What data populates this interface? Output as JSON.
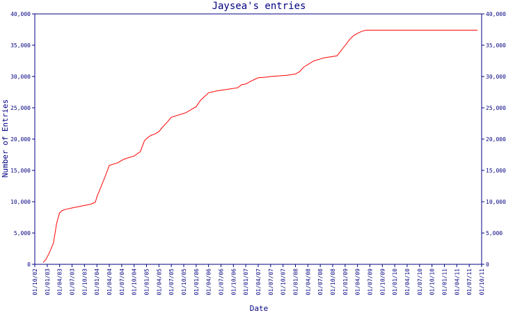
{
  "chart_data": {
    "type": "line",
    "title": "Jaysea's entries",
    "xlabel": "Date",
    "ylabel": "Number of Entries",
    "x_tick_labels": [
      "01/10/02",
      "01/01/03",
      "01/04/03",
      "01/07/03",
      "01/10/03",
      "01/01/04",
      "01/04/04",
      "01/07/04",
      "01/10/04",
      "01/01/05",
      "01/04/05",
      "01/07/05",
      "01/10/05",
      "01/01/06",
      "01/04/06",
      "01/07/06",
      "01/10/06",
      "01/01/07",
      "01/04/07",
      "01/07/07",
      "01/10/07",
      "01/01/08",
      "01/04/08",
      "01/07/08",
      "01/10/08",
      "01/01/09",
      "01/04/09",
      "01/07/09",
      "01/10/09",
      "01/01/10",
      "01/04/10",
      "01/07/10",
      "01/10/10",
      "01/01/11",
      "01/04/11",
      "01/07/11",
      "01/10/11"
    ],
    "y_tick_labels": [
      "0",
      "5,000",
      "10,000",
      "15,000",
      "20,000",
      "25,000",
      "30,000",
      "35,000",
      "40,000"
    ],
    "ylim": [
      0,
      40000
    ],
    "xlim": [
      "2002-10-01",
      "2011-10-01"
    ],
    "grid": false,
    "colors": {
      "series": "#ff0000",
      "axis": "#000080",
      "text": "#000080"
    },
    "series": [
      {
        "x": [
          "2002-12-01",
          "2002-12-20",
          "2003-01-15",
          "2003-02-15",
          "2003-03-10",
          "2003-04-01",
          "2003-04-20",
          "2003-05-20",
          "2003-07-01",
          "2003-08-15",
          "2003-10-01",
          "2003-11-15",
          "2003-12-20",
          "2004-01-01",
          "2004-01-20",
          "2004-03-01",
          "2004-04-01",
          "2004-06-01",
          "2004-07-01",
          "2004-08-01",
          "2004-10-01",
          "2004-11-15",
          "2004-12-15",
          "2005-01-01",
          "2005-02-01",
          "2005-03-01",
          "2005-04-01",
          "2005-05-01",
          "2005-06-01",
          "2005-07-01",
          "2005-08-01",
          "2005-09-15",
          "2005-10-15",
          "2006-01-01",
          "2006-02-01",
          "2006-04-01",
          "2006-06-01",
          "2006-07-01",
          "2006-09-01",
          "2006-11-01",
          "2006-12-01",
          "2007-01-01",
          "2007-02-01",
          "2007-04-01",
          "2007-06-01",
          "2007-07-01",
          "2007-09-01",
          "2007-11-01",
          "2007-12-01",
          "2008-01-01",
          "2008-02-01",
          "2008-03-01",
          "2008-05-15",
          "2008-07-01",
          "2008-08-01",
          "2008-09-01",
          "2008-11-01",
          "2009-01-01",
          "2009-02-01",
          "2009-03-01",
          "2009-04-01",
          "2009-05-01",
          "2009-06-01",
          "2009-07-01",
          "2011-09-01"
        ],
        "values": [
          300,
          700,
          1800,
          3400,
          6500,
          8200,
          8600,
          8800,
          9000,
          9200,
          9400,
          9600,
          9900,
          10800,
          11800,
          14000,
          15800,
          16200,
          16600,
          16900,
          17300,
          18000,
          19700,
          20100,
          20600,
          20800,
          21200,
          22000,
          22700,
          23500,
          23700,
          24000,
          24200,
          25200,
          26200,
          27400,
          27700,
          27800,
          28000,
          28200,
          28700,
          28800,
          29200,
          29800,
          29900,
          30000,
          30100,
          30200,
          30300,
          30400,
          30800,
          31500,
          32500,
          32800,
          33000,
          33100,
          33300,
          35000,
          35900,
          36500,
          36900,
          37200,
          37400,
          37400,
          37400
        ]
      }
    ]
  }
}
